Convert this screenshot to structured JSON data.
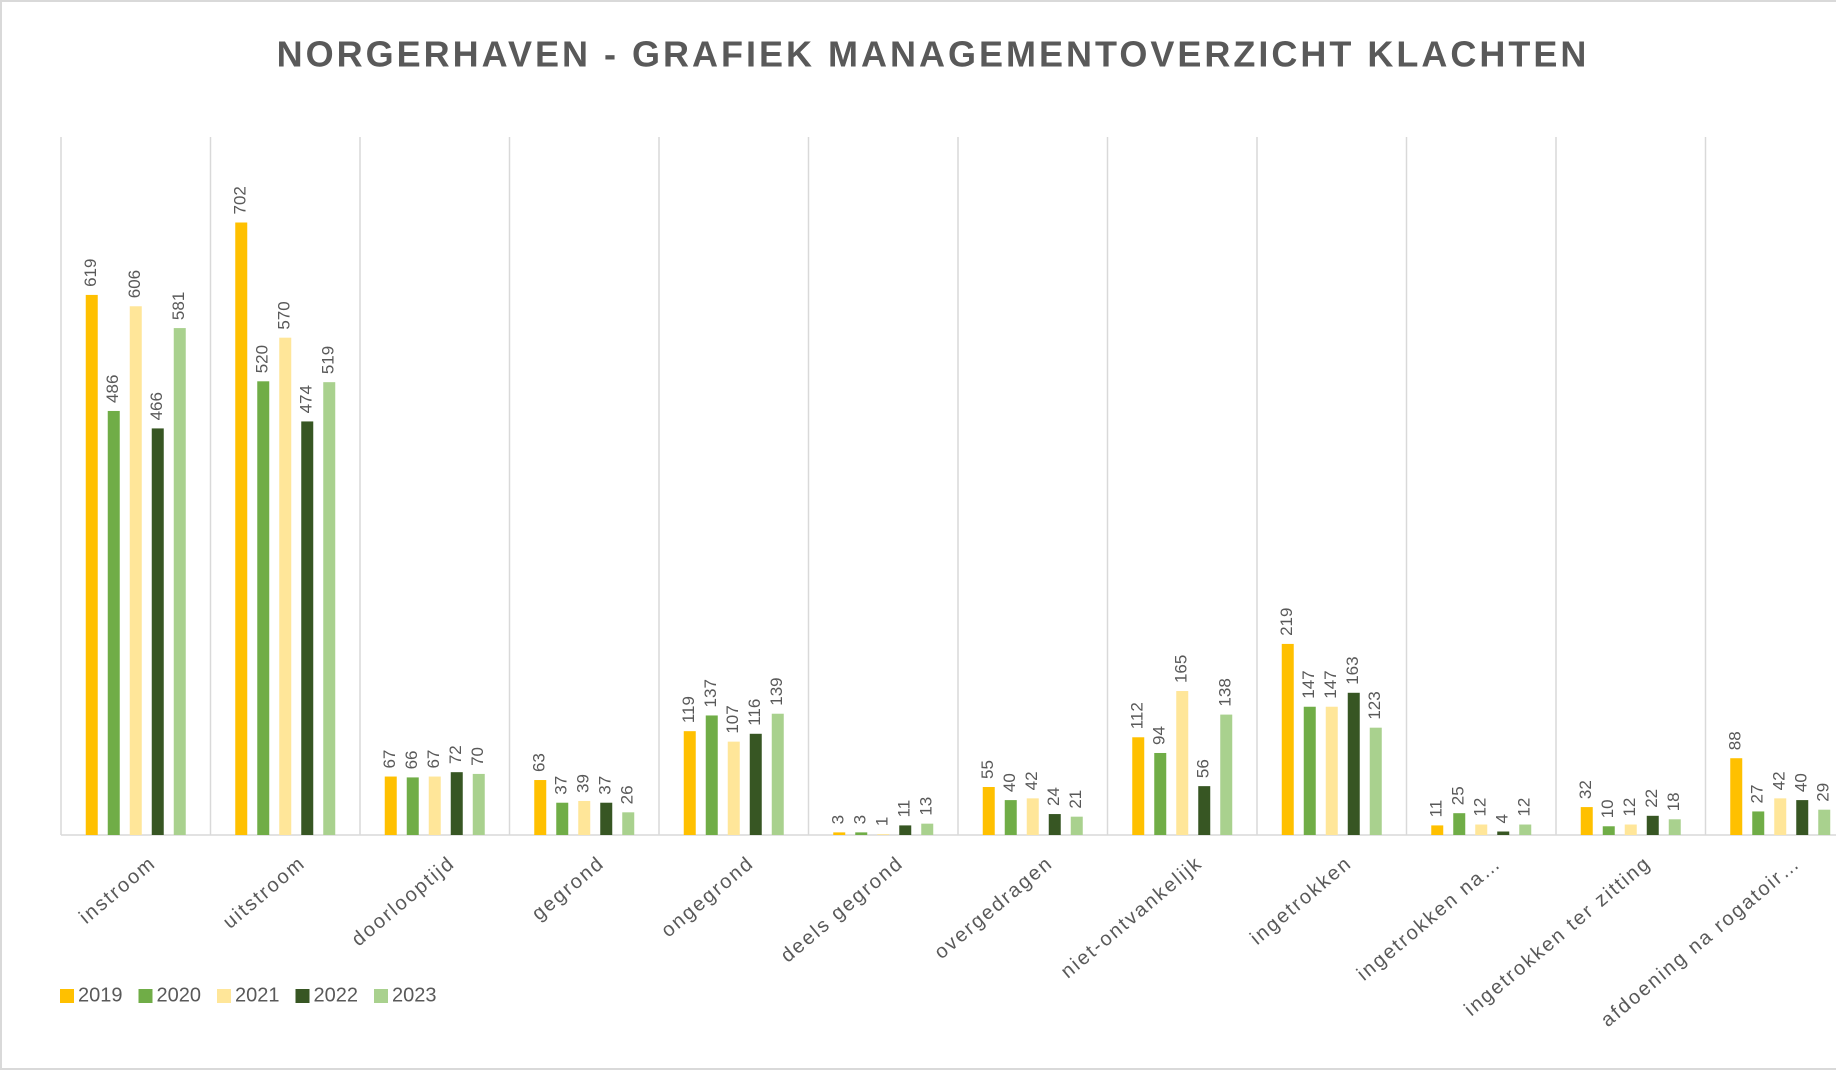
{
  "chart_data": {
    "type": "bar",
    "title": "NORGERHAVEN - GRAFIEK MANAGEMENTOVERZICHT KLACHTEN",
    "categories": [
      "instroom",
      "uitstroom",
      "doorlooptijd",
      "gegrond",
      "ongegrond",
      "deels gegrond",
      "overgedragen",
      "niet-ontvankelijk",
      "ingetrokken",
      "ingetrokken na…",
      "ingetrokken ter zitting",
      "afdoening na rogatoir…"
    ],
    "series": [
      {
        "name": "2019",
        "color": "#ffc000",
        "values": [
          619,
          702,
          67,
          63,
          119,
          3,
          55,
          112,
          219,
          11,
          32,
          88
        ]
      },
      {
        "name": "2020",
        "color": "#70ad47",
        "values": [
          486,
          520,
          66,
          37,
          137,
          3,
          40,
          94,
          147,
          25,
          10,
          27
        ]
      },
      {
        "name": "2021",
        "color": "#ffe699",
        "values": [
          606,
          570,
          67,
          39,
          107,
          1,
          42,
          165,
          147,
          12,
          12,
          42
        ]
      },
      {
        "name": "2022",
        "color": "#375623",
        "values": [
          466,
          474,
          72,
          37,
          116,
          11,
          24,
          56,
          163,
          4,
          22,
          40
        ]
      },
      {
        "name": "2023",
        "color": "#a9d18e",
        "values": [
          581,
          519,
          70,
          26,
          139,
          13,
          21,
          138,
          123,
          12,
          18,
          29
        ]
      }
    ],
    "ylim": [
      0,
      800
    ],
    "legend": "bottom-left"
  }
}
